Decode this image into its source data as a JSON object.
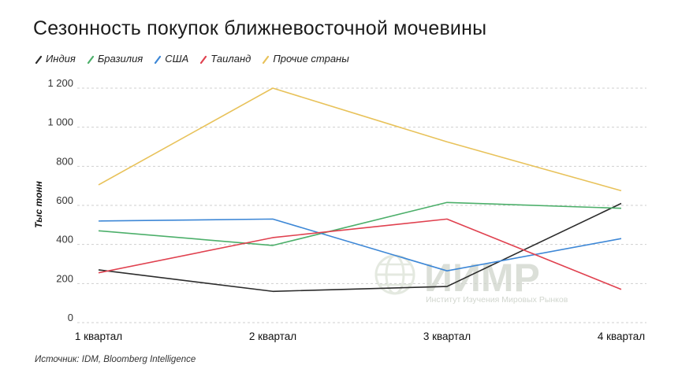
{
  "title": "Сезонность покупок ближневосточной мочевины",
  "source": "Источник: IDM, Bloomberg Intelligence",
  "watermark": {
    "name": "ИИМР",
    "subtitle": "Институт Изучения Мировых Рынков"
  },
  "chart_data": {
    "type": "line",
    "categories": [
      "1 квартал",
      "2 квартал",
      "3 квартал",
      "4 квартал"
    ],
    "ylabel": "Тыс тонн",
    "xlabel": "",
    "ylim": [
      0,
      1200
    ],
    "yticks": [
      0,
      200,
      400,
      600,
      800,
      1000,
      1200
    ],
    "ytick_labels": [
      "0",
      "200",
      "400",
      "600",
      "800",
      "1 000",
      "1 200"
    ],
    "grid": true,
    "legend_position": "top-left",
    "series": [
      {
        "name": "Индия",
        "color": "#2b2b2b",
        "values": [
          270,
          160,
          185,
          610
        ]
      },
      {
        "name": "Бразилия",
        "color": "#4caf6a",
        "values": [
          470,
          395,
          615,
          585
        ]
      },
      {
        "name": "США",
        "color": "#3d87d6",
        "values": [
          520,
          530,
          265,
          430
        ]
      },
      {
        "name": "Таиланд",
        "color": "#e0414f",
        "values": [
          255,
          435,
          530,
          170
        ]
      },
      {
        "name": "Прочие страны",
        "color": "#e8c25a",
        "values": [
          705,
          1200,
          925,
          675
        ]
      }
    ]
  }
}
